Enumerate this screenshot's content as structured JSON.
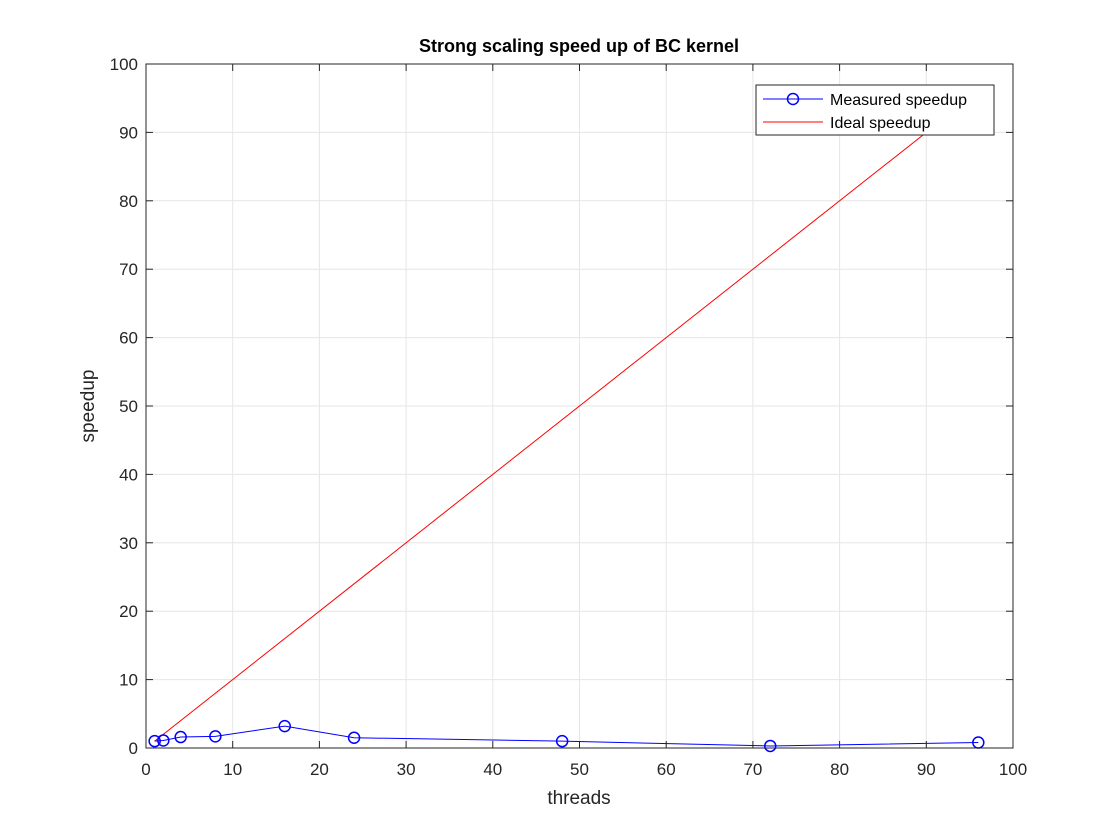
{
  "chart_data": {
    "type": "line",
    "title": "Strong scaling speed up of BC kernel",
    "xlabel": "threads",
    "ylabel": "speedup",
    "xlim": [
      0,
      100
    ],
    "ylim": [
      0,
      100
    ],
    "xticks": [
      "0",
      "10",
      "20",
      "30",
      "40",
      "50",
      "60",
      "70",
      "80",
      "90",
      "100"
    ],
    "yticks": [
      "0",
      "10",
      "20",
      "30",
      "40",
      "50",
      "60",
      "70",
      "80",
      "90",
      "100"
    ],
    "grid": true,
    "legend_position": "top-right",
    "series": [
      {
        "name": "Measured speedup",
        "color": "#0000ff",
        "marker": "circle",
        "x": [
          1,
          2,
          4,
          8,
          16,
          24,
          48,
          72,
          96
        ],
        "y": [
          1.0,
          1.1,
          1.6,
          1.7,
          3.2,
          1.5,
          1.0,
          0.3,
          0.8
        ]
      },
      {
        "name": "Ideal speedup",
        "color": "#ff0000",
        "marker": "none",
        "x": [
          1,
          96
        ],
        "y": [
          1,
          96
        ]
      }
    ]
  }
}
